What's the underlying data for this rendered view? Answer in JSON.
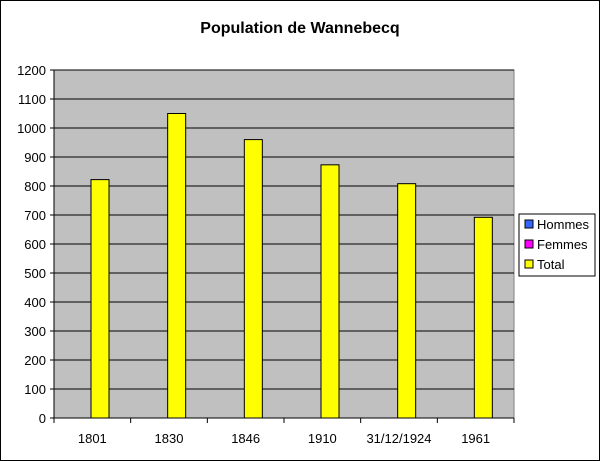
{
  "chart_data": {
    "type": "bar",
    "title": "Population de Wannebecq",
    "xlabel": "",
    "ylabel": "",
    "categories": [
      "1801",
      "1830",
      "1846",
      "1910",
      "31/12/1924",
      "1961"
    ],
    "ylim": [
      0,
      1200
    ],
    "yticks": [
      0,
      100,
      200,
      300,
      400,
      500,
      600,
      700,
      800,
      900,
      1000,
      1100,
      1200
    ],
    "grid": true,
    "legend_position": "right",
    "plot_background": "#c0c0c0",
    "series": [
      {
        "name": "Hommes",
        "color": "#3366ff",
        "values": [
          null,
          null,
          null,
          null,
          null,
          null
        ]
      },
      {
        "name": "Femmes",
        "color": "#ff00ff",
        "values": [
          null,
          null,
          null,
          null,
          null,
          null
        ]
      },
      {
        "name": "Total",
        "color": "#ffff00",
        "values": [
          822,
          1050,
          960,
          873,
          808,
          692
        ]
      }
    ]
  }
}
